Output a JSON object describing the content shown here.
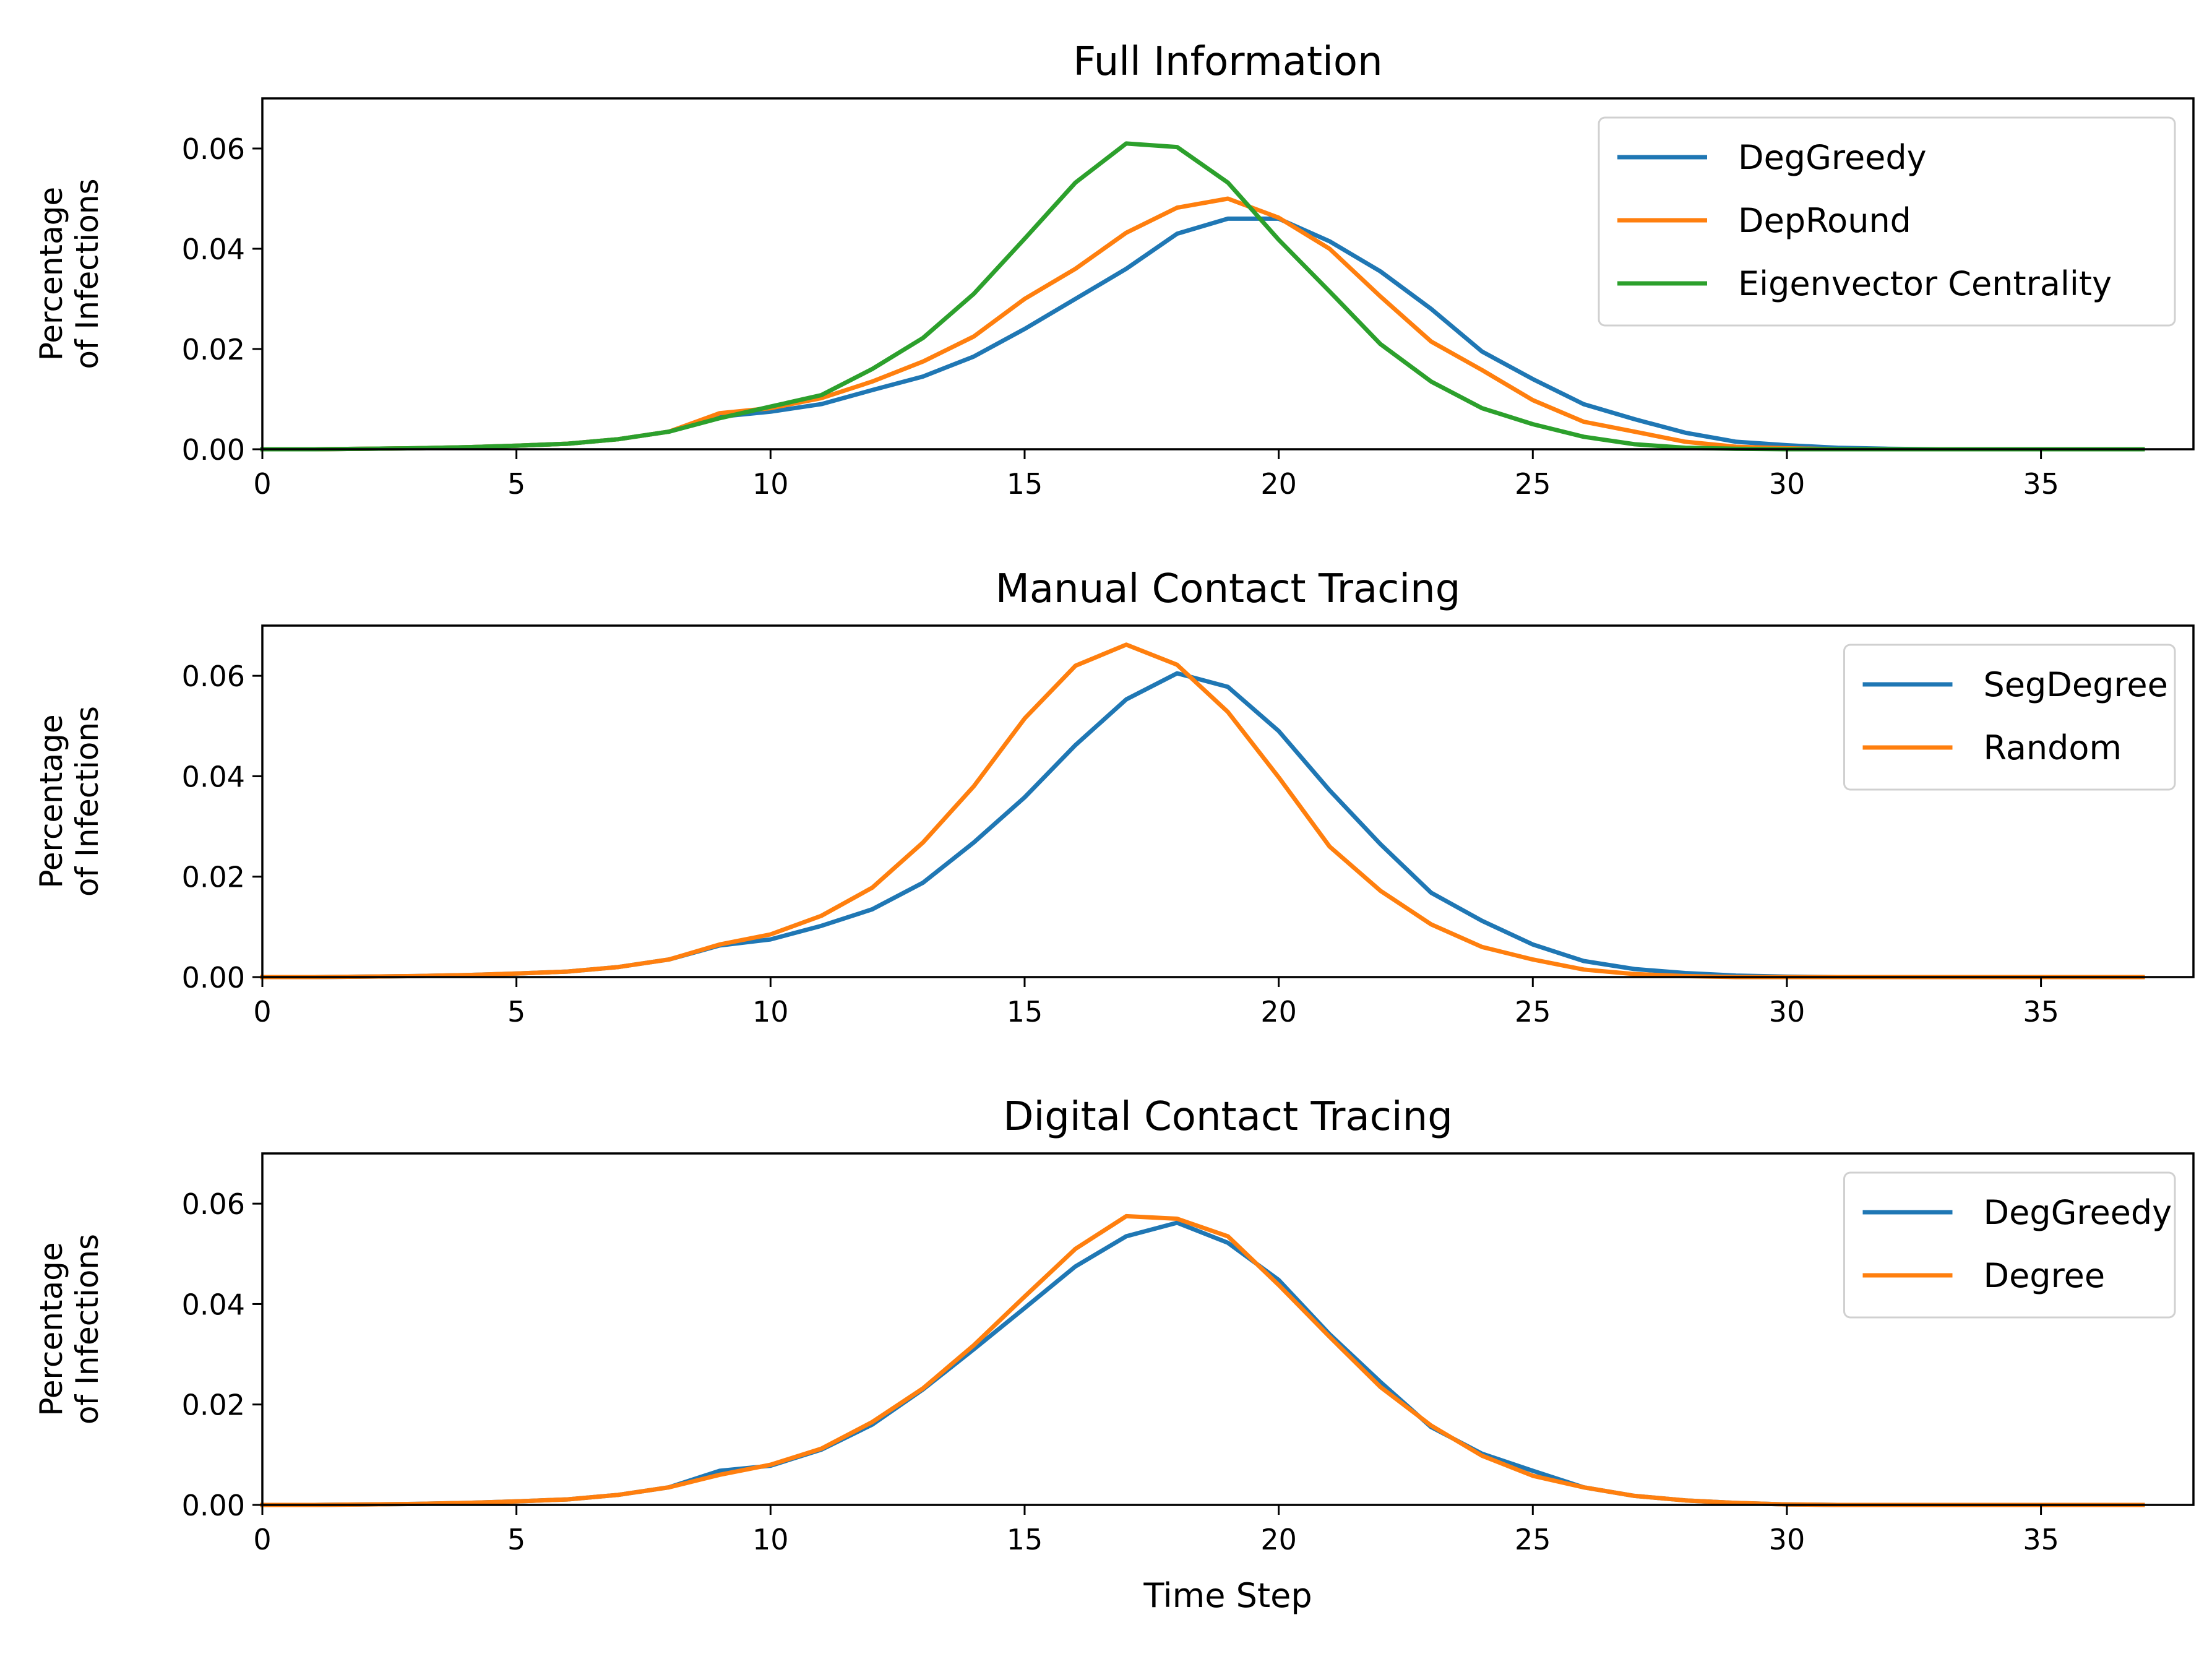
{
  "chart_data": [
    {
      "type": "line",
      "title": "Full Information",
      "ylabel": [
        "Percentage",
        "of Infections"
      ],
      "xlabel": "",
      "xlim": [
        0,
        38
      ],
      "ylim": [
        0,
        0.07
      ],
      "xticks": [
        0,
        5,
        10,
        15,
        20,
        25,
        30,
        35
      ],
      "yticks": [
        "0.00",
        "0.02",
        "0.04",
        "0.06"
      ],
      "grid": false,
      "legend": "upper-right",
      "series": [
        {
          "name": "DegGreedy",
          "color": "#1f77b4",
          "x": [
            0,
            1,
            2,
            3,
            4,
            5,
            6,
            7,
            8,
            9,
            10,
            11,
            12,
            13,
            14,
            15,
            16,
            17,
            18,
            19,
            20,
            21,
            22,
            23,
            24,
            25,
            26,
            27,
            28,
            29,
            30,
            31,
            32,
            33,
            34,
            35,
            36,
            37
          ],
          "y": [
            0,
            0,
            0.0001,
            0.0002,
            0.0004,
            0.0007,
            0.0011,
            0.002,
            0.0035,
            0.0065,
            0.0075,
            0.009,
            0.0118,
            0.0145,
            0.0185,
            0.024,
            0.03,
            0.036,
            0.043,
            0.046,
            0.046,
            0.0415,
            0.0355,
            0.028,
            0.0195,
            0.014,
            0.009,
            0.006,
            0.0033,
            0.0015,
            0.0008,
            0.0003,
            0.0001,
            0,
            0,
            0,
            0,
            0
          ]
        },
        {
          "name": "DepRound",
          "color": "#ff7f0e",
          "x": [
            0,
            1,
            2,
            3,
            4,
            5,
            6,
            7,
            8,
            9,
            10,
            11,
            12,
            13,
            14,
            15,
            16,
            17,
            18,
            19,
            20,
            21,
            22,
            23,
            24,
            25,
            26,
            27,
            28,
            29,
            30,
            31,
            32,
            33,
            34,
            35,
            36,
            37
          ],
          "y": [
            0,
            0,
            0.0001,
            0.0002,
            0.0004,
            0.0007,
            0.0011,
            0.002,
            0.0035,
            0.0072,
            0.0082,
            0.0102,
            0.0135,
            0.0175,
            0.0225,
            0.03,
            0.036,
            0.0432,
            0.0482,
            0.05,
            0.0462,
            0.04,
            0.0305,
            0.0215,
            0.0158,
            0.0098,
            0.0055,
            0.0035,
            0.0015,
            0.0005,
            0.0002,
            0,
            0,
            0,
            0,
            0,
            0,
            0
          ]
        },
        {
          "name": "Eigenvector Centrality",
          "color": "#2ca02c",
          "x": [
            0,
            1,
            2,
            3,
            4,
            5,
            6,
            7,
            8,
            9,
            10,
            11,
            12,
            13,
            14,
            15,
            16,
            17,
            18,
            19,
            20,
            21,
            22,
            23,
            24,
            25,
            26,
            27,
            28,
            29,
            30,
            31,
            32,
            33,
            34,
            35,
            36,
            37
          ],
          "y": [
            0,
            0,
            0.0001,
            0.0002,
            0.0004,
            0.0007,
            0.0011,
            0.002,
            0.0035,
            0.0062,
            0.0085,
            0.0108,
            0.016,
            0.0222,
            0.031,
            0.042,
            0.0532,
            0.061,
            0.0603,
            0.0532,
            0.0418,
            0.0315,
            0.021,
            0.0135,
            0.0082,
            0.005,
            0.0025,
            0.001,
            0.0003,
            0.0001,
            0,
            0,
            0,
            0,
            0,
            0,
            0,
            0
          ]
        }
      ]
    },
    {
      "type": "line",
      "title": "Manual Contact Tracing",
      "ylabel": [
        "Percentage",
        "of Infections"
      ],
      "xlabel": "",
      "xlim": [
        0,
        38
      ],
      "ylim": [
        0,
        0.07
      ],
      "xticks": [
        0,
        5,
        10,
        15,
        20,
        25,
        30,
        35
      ],
      "yticks": [
        "0.00",
        "0.02",
        "0.04",
        "0.06"
      ],
      "grid": false,
      "legend": "upper-right",
      "series": [
        {
          "name": "SegDegree",
          "color": "#1f77b4",
          "x": [
            0,
            1,
            2,
            3,
            4,
            5,
            6,
            7,
            8,
            9,
            10,
            11,
            12,
            13,
            14,
            15,
            16,
            17,
            18,
            19,
            20,
            21,
            22,
            23,
            24,
            25,
            26,
            27,
            28,
            29,
            30,
            31,
            32,
            33,
            34,
            35,
            36,
            37
          ],
          "y": [
            0,
            0,
            0.0001,
            0.0002,
            0.0004,
            0.0007,
            0.0011,
            0.002,
            0.0035,
            0.0063,
            0.0075,
            0.0102,
            0.0135,
            0.0188,
            0.0268,
            0.0358,
            0.0462,
            0.0553,
            0.0605,
            0.0578,
            0.049,
            0.0372,
            0.0265,
            0.0168,
            0.0112,
            0.0065,
            0.0032,
            0.0016,
            0.0008,
            0.0003,
            0.0001,
            0,
            0,
            0,
            0,
            0,
            0,
            0
          ]
        },
        {
          "name": "Random",
          "color": "#ff7f0e",
          "x": [
            0,
            1,
            2,
            3,
            4,
            5,
            6,
            7,
            8,
            9,
            10,
            11,
            12,
            13,
            14,
            15,
            16,
            17,
            18,
            19,
            20,
            21,
            22,
            23,
            24,
            25,
            26,
            27,
            28,
            29,
            30,
            31,
            32,
            33,
            34,
            35,
            36,
            37
          ],
          "y": [
            0,
            0,
            0.0001,
            0.0002,
            0.0004,
            0.0007,
            0.0011,
            0.002,
            0.0035,
            0.0065,
            0.0085,
            0.0122,
            0.0178,
            0.0268,
            0.038,
            0.0515,
            0.062,
            0.0662,
            0.0622,
            0.0528,
            0.0398,
            0.026,
            0.0172,
            0.0105,
            0.006,
            0.0035,
            0.0015,
            0.0006,
            0.0002,
            0,
            0,
            0,
            0,
            0,
            0,
            0,
            0,
            0
          ]
        }
      ]
    },
    {
      "type": "line",
      "title": "Digital Contact Tracing",
      "ylabel": [
        "Percentage",
        "of Infections"
      ],
      "xlabel": "Time Step",
      "xlim": [
        0,
        38
      ],
      "ylim": [
        0,
        0.07
      ],
      "xticks": [
        0,
        5,
        10,
        15,
        20,
        25,
        30,
        35
      ],
      "yticks": [
        "0.00",
        "0.02",
        "0.04",
        "0.06"
      ],
      "grid": false,
      "legend": "upper-right",
      "series": [
        {
          "name": "DegGreedy",
          "color": "#1f77b4",
          "x": [
            0,
            1,
            2,
            3,
            4,
            5,
            6,
            7,
            8,
            9,
            10,
            11,
            12,
            13,
            14,
            15,
            16,
            17,
            18,
            19,
            20,
            21,
            22,
            23,
            24,
            25,
            26,
            27,
            28,
            29,
            30,
            31,
            32,
            33,
            34,
            35,
            36,
            37
          ],
          "y": [
            0,
            0,
            0.0001,
            0.0002,
            0.0004,
            0.0007,
            0.0011,
            0.002,
            0.0035,
            0.0068,
            0.0078,
            0.011,
            0.016,
            0.023,
            0.031,
            0.0392,
            0.0475,
            0.0535,
            0.0562,
            0.0522,
            0.0448,
            0.034,
            0.0245,
            0.0155,
            0.0102,
            0.0068,
            0.0035,
            0.0018,
            0.0009,
            0.0004,
            0.0001,
            0,
            0,
            0,
            0,
            0,
            0,
            0
          ]
        },
        {
          "name": "Degree",
          "color": "#ff7f0e",
          "x": [
            0,
            1,
            2,
            3,
            4,
            5,
            6,
            7,
            8,
            9,
            10,
            11,
            12,
            13,
            14,
            15,
            16,
            17,
            18,
            19,
            20,
            21,
            22,
            23,
            24,
            25,
            26,
            27,
            28,
            29,
            30,
            31,
            32,
            33,
            34,
            35,
            36,
            37
          ],
          "y": [
            0,
            0,
            0.0001,
            0.0002,
            0.0004,
            0.0007,
            0.0011,
            0.002,
            0.0035,
            0.006,
            0.008,
            0.0112,
            0.0165,
            0.0232,
            0.0318,
            0.0415,
            0.051,
            0.0575,
            0.057,
            0.0535,
            0.0438,
            0.0335,
            0.0235,
            0.0158,
            0.0098,
            0.0058,
            0.0035,
            0.0018,
            0.0009,
            0.0004,
            0.0001,
            0,
            0,
            0,
            0,
            0,
            0,
            0
          ]
        }
      ]
    }
  ]
}
